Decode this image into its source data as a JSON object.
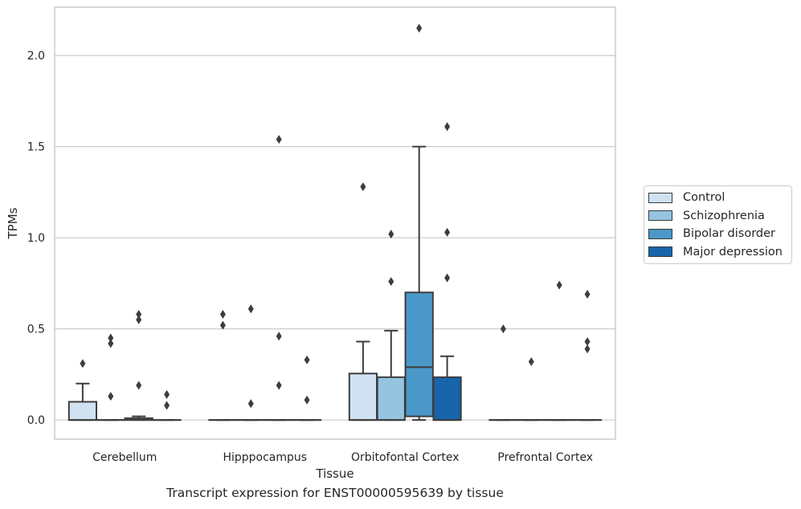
{
  "chart_data": {
    "type": "box",
    "xlabel": "Tissue",
    "ylabel": "TPMs",
    "caption": "Transcript expression for ENST00000595639 by tissue",
    "ylim": [
      -0.105,
      2.265
    ],
    "yticks": [
      "0.0",
      "0.5",
      "1.0",
      "1.5",
      "2.0"
    ],
    "grid": true,
    "legend_position": "right",
    "categories": [
      "Cerebellum",
      "Hipppocampus",
      "Orbitofontal Cortex",
      "Prefrontal Cortex"
    ],
    "series": [
      {
        "name": "Control",
        "color": "#d0e1f2",
        "boxes": [
          {
            "q1": 0.0,
            "median": 0.0,
            "q3": 0.1,
            "whisker_low": 0.0,
            "whisker_high": 0.2,
            "outliers": [
              0.31
            ]
          },
          {
            "q1": 0.0,
            "median": 0.0,
            "q3": 0.0,
            "whisker_low": 0.0,
            "whisker_high": 0.0,
            "outliers": [
              0.52,
              0.58
            ]
          },
          {
            "q1": 0.0,
            "median": 0.0,
            "q3": 0.255,
            "whisker_low": 0.0,
            "whisker_high": 0.43,
            "outliers": [
              1.28
            ]
          },
          {
            "q1": 0.0,
            "median": 0.0,
            "q3": 0.0,
            "whisker_low": 0.0,
            "whisker_high": 0.0,
            "outliers": [
              0.5
            ]
          }
        ]
      },
      {
        "name": "Schizophrenia",
        "color": "#94c4df",
        "boxes": [
          {
            "q1": 0.0,
            "median": 0.0,
            "q3": 0.0,
            "whisker_low": 0.0,
            "whisker_high": 0.0,
            "outliers": [
              0.13,
              0.42,
              0.45
            ]
          },
          {
            "q1": 0.0,
            "median": 0.0,
            "q3": 0.0,
            "whisker_low": 0.0,
            "whisker_high": 0.0,
            "outliers": [
              0.09,
              0.61
            ]
          },
          {
            "q1": 0.0,
            "median": 0.0,
            "q3": 0.235,
            "whisker_low": 0.0,
            "whisker_high": 0.49,
            "outliers": [
              0.76,
              1.02
            ]
          },
          {
            "q1": 0.0,
            "median": 0.0,
            "q3": 0.0,
            "whisker_low": 0.0,
            "whisker_high": 0.0,
            "outliers": [
              0.32
            ]
          }
        ]
      },
      {
        "name": "Bipolar disorder",
        "color": "#4a98c9",
        "boxes": [
          {
            "q1": 0.0,
            "median": 0.0,
            "q3": 0.01,
            "whisker_low": 0.0,
            "whisker_high": 0.02,
            "outliers": [
              0.19,
              0.55,
              0.58
            ]
          },
          {
            "q1": 0.0,
            "median": 0.0,
            "q3": 0.0,
            "whisker_low": 0.0,
            "whisker_high": 0.0,
            "outliers": [
              0.19,
              0.46,
              1.54
            ]
          },
          {
            "q1": 0.02,
            "median": 0.29,
            "q3": 0.7,
            "whisker_low": 0.0,
            "whisker_high": 1.5,
            "outliers": [
              2.15
            ]
          },
          {
            "q1": 0.0,
            "median": 0.0,
            "q3": 0.0,
            "whisker_low": 0.0,
            "whisker_high": 0.0,
            "outliers": [
              0.74
            ]
          }
        ]
      },
      {
        "name": "Major depression",
        "color": "#1764ab",
        "boxes": [
          {
            "q1": 0.0,
            "median": 0.0,
            "q3": 0.0,
            "whisker_low": 0.0,
            "whisker_high": 0.0,
            "outliers": [
              0.08,
              0.14
            ]
          },
          {
            "q1": 0.0,
            "median": 0.0,
            "q3": 0.0,
            "whisker_low": 0.0,
            "whisker_high": 0.0,
            "outliers": [
              0.11,
              0.33
            ]
          },
          {
            "q1": 0.0,
            "median": 0.0,
            "q3": 0.235,
            "whisker_low": 0.0,
            "whisker_high": 0.35,
            "outliers": [
              0.78,
              1.03,
              1.61
            ]
          },
          {
            "q1": 0.0,
            "median": 0.0,
            "q3": 0.0,
            "whisker_low": 0.0,
            "whisker_high": 0.0,
            "outliers": [
              0.39,
              0.43,
              0.69
            ]
          }
        ]
      }
    ]
  }
}
